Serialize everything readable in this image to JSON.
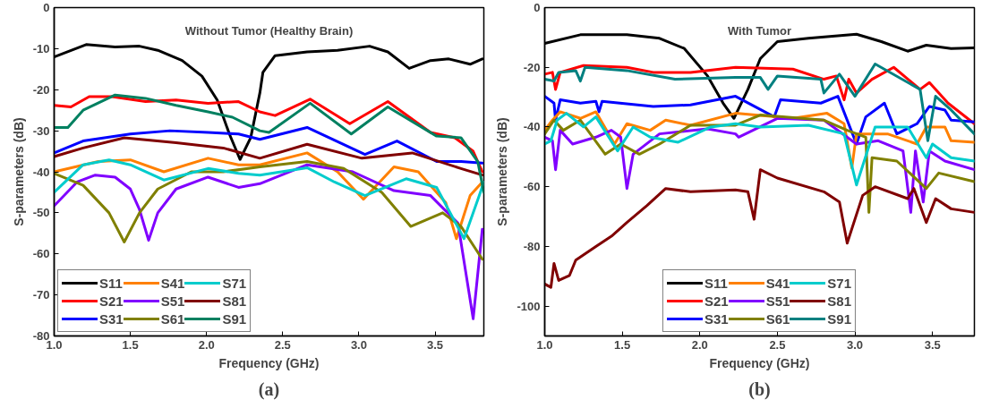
{
  "chart_data": [
    {
      "type": "line",
      "title": "Without Tumor (Healthy Brain)",
      "xlabel": "Frequency (GHz)",
      "ylabel": "S-parameters (dB)",
      "annotations": [
        "(a)"
      ],
      "grid": false,
      "legend": "bottom left",
      "line_style": "solid",
      "xlim": [
        1.0,
        3.82
      ],
      "xticks": [
        {
          "value": 1.0,
          "label": "1.0"
        },
        {
          "value": 1.5,
          "label": "1.5"
        },
        {
          "value": 2.0,
          "label": "2.0"
        },
        {
          "value": 2.5,
          "label": "2.5"
        },
        {
          "value": 3.0,
          "label": "3.0"
        },
        {
          "value": 3.5,
          "label": "3.5"
        }
      ],
      "ylim": [
        -80,
        0
      ],
      "yticks": [
        -80,
        -70,
        -60,
        -50,
        -40,
        -30,
        -20,
        -10,
        0
      ],
      "series": [
        {
          "name": "S11",
          "color": "#000000",
          "x": [
            1.0,
            1.21,
            1.4,
            1.56,
            1.68,
            1.84,
            1.97,
            2.07,
            2.15,
            2.22,
            2.29,
            2.35,
            2.37,
            2.45,
            2.66,
            2.86,
            3.07,
            3.19,
            3.33,
            3.47,
            3.59,
            3.73,
            3.81
          ],
          "values": [
            -12,
            -9,
            -9.6,
            -9.4,
            -10.4,
            -12.9,
            -16.7,
            -22.5,
            -30.8,
            -37,
            -31.7,
            -20.8,
            -15.8,
            -11.7,
            -10.8,
            -10.4,
            -9.4,
            -10.8,
            -14.8,
            -12.9,
            -12.5,
            -13.8,
            -12.5
          ]
        },
        {
          "name": "S21",
          "color": "#ff0000",
          "x": [
            1.0,
            1.11,
            1.23,
            1.38,
            1.6,
            1.8,
            2.01,
            2.21,
            2.35,
            2.45,
            2.68,
            2.94,
            3.19,
            3.47,
            3.63,
            3.75,
            3.81
          ],
          "values": [
            -23.8,
            -24.2,
            -21.7,
            -21.7,
            -22.9,
            -22.5,
            -23.3,
            -22.9,
            -25.4,
            -26.3,
            -22.3,
            -28.3,
            -22.9,
            -30.4,
            -31.7,
            -35,
            -40
          ]
        },
        {
          "name": "S31",
          "color": "#0000ff",
          "x": [
            1.0,
            1.19,
            1.5,
            1.76,
            2.01,
            2.21,
            2.35,
            2.66,
            3.04,
            3.25,
            3.51,
            3.67,
            3.81
          ],
          "values": [
            -35.4,
            -32.5,
            -30.8,
            -30,
            -30.4,
            -30.8,
            -32.1,
            -29.2,
            -35.8,
            -32.5,
            -37.5,
            -37.5,
            -37.9
          ]
        },
        {
          "name": "S41",
          "color": "#ff8000",
          "x": [
            1.0,
            1.29,
            1.5,
            1.72,
            2.01,
            2.21,
            2.35,
            2.66,
            2.86,
            3.03,
            3.23,
            3.39,
            3.57,
            3.64,
            3.73,
            3.81
          ],
          "values": [
            -40,
            -37.5,
            -37.1,
            -40,
            -36.7,
            -38.3,
            -38.3,
            -35.4,
            -40,
            -46.7,
            -38.8,
            -40,
            -47.5,
            -56.3,
            -45.8,
            -42.5
          ]
        },
        {
          "name": "S51",
          "color": "#8000ff",
          "x": [
            1.0,
            1.15,
            1.27,
            1.4,
            1.5,
            1.56,
            1.62,
            1.68,
            1.8,
            2.01,
            2.21,
            2.35,
            2.66,
            2.96,
            3.23,
            3.47,
            3.65,
            3.75,
            3.81
          ],
          "values": [
            -48.3,
            -42.5,
            -40.8,
            -41.3,
            -44.2,
            -49.2,
            -56.7,
            -50,
            -44.2,
            -41.3,
            -43.8,
            -42.9,
            -38.3,
            -40,
            -44.6,
            -45.8,
            -52.5,
            -75.8,
            -54
          ]
        },
        {
          "name": "S61",
          "color": "#808000",
          "x": [
            1.0,
            1.19,
            1.36,
            1.46,
            1.56,
            1.68,
            1.9,
            2.11,
            2.35,
            2.66,
            2.9,
            3.15,
            3.34,
            3.55,
            3.67,
            3.81
          ],
          "values": [
            -40.4,
            -43.3,
            -50,
            -57.1,
            -50,
            -44.2,
            -40,
            -40,
            -38.8,
            -37.5,
            -39.2,
            -45,
            -53.3,
            -50,
            -53.3,
            -61.3
          ]
        },
        {
          "name": "S71",
          "color": "#00cccc",
          "x": [
            1.0,
            1.19,
            1.36,
            1.5,
            1.72,
            2.01,
            2.21,
            2.35,
            2.66,
            2.84,
            3.04,
            3.31,
            3.51,
            3.69,
            3.79,
            3.82
          ],
          "values": [
            -45,
            -38.3,
            -37.1,
            -38.3,
            -42,
            -39.2,
            -40.4,
            -40.8,
            -39,
            -42.5,
            -45.8,
            -41.7,
            -43.8,
            -56.3,
            -45.8,
            -42.5
          ]
        },
        {
          "name": "S81",
          "color": "#800000",
          "x": [
            1.0,
            1.19,
            1.46,
            1.8,
            2.11,
            2.35,
            2.66,
            3.02,
            3.35,
            3.67,
            3.81
          ],
          "values": [
            -36.3,
            -34.2,
            -31.7,
            -32.9,
            -34.2,
            -36.7,
            -33.3,
            -36.7,
            -35.4,
            -39.2,
            -40.8
          ]
        },
        {
          "name": "S91",
          "color": "#008060",
          "x": [
            1.0,
            1.09,
            1.19,
            1.4,
            1.6,
            1.8,
            2.01,
            2.17,
            2.35,
            2.41,
            2.68,
            2.95,
            3.19,
            3.51,
            3.67,
            3.78,
            3.82
          ],
          "values": [
            -29.2,
            -29.2,
            -25,
            -21.3,
            -22.1,
            -23.8,
            -25.4,
            -26.7,
            -30,
            -30.4,
            -23.3,
            -30.8,
            -24.2,
            -31.3,
            -31.7,
            -37.5,
            -45
          ]
        }
      ]
    },
    {
      "type": "line",
      "title": "With Tumor",
      "xlabel": "Frequency (GHz)",
      "ylabel": "S-parameters (dB)",
      "annotations": [
        "(b)"
      ],
      "grid": false,
      "legend": "bottom",
      "line_style": "solid",
      "xlim": [
        1.0,
        3.77
      ],
      "xticks": [
        {
          "value": 1.0,
          "label": "1.0"
        },
        {
          "value": 1.5,
          "label": "1.5"
        },
        {
          "value": 2.0,
          "label": "2.0"
        },
        {
          "value": 2.5,
          "label": "2.5"
        },
        {
          "value": 3.0,
          "label": "3.0"
        },
        {
          "value": 3.5,
          "label": "3.5"
        }
      ],
      "ylim": [
        -110,
        0
      ],
      "yticks": [
        -100,
        -80,
        -60,
        -40,
        -20,
        0
      ],
      "series": [
        {
          "name": "S11",
          "color": "#000000",
          "x": [
            1.0,
            1.23,
            1.53,
            1.74,
            1.9,
            2.05,
            2.15,
            2.22,
            2.23,
            2.31,
            2.39,
            2.5,
            2.7,
            3.01,
            3.17,
            3.34,
            3.46,
            3.62,
            3.77
          ],
          "values": [
            -12,
            -9.1,
            -9.1,
            -10.3,
            -13.7,
            -22.9,
            -32,
            -37.1,
            -36,
            -27.4,
            -17.1,
            -11.4,
            -10.3,
            -8.9,
            -11.4,
            -14.6,
            -12.6,
            -13.7,
            -13.5
          ]
        },
        {
          "name": "S21",
          "color": "#ff0000",
          "x": [
            1.0,
            1.05,
            1.07,
            1.1,
            1.25,
            1.53,
            1.7,
            1.94,
            2.23,
            2.6,
            2.8,
            2.88,
            2.93,
            2.96,
            3.01,
            3.11,
            3.25,
            3.42,
            3.48,
            3.6,
            3.77
          ],
          "values": [
            -22.3,
            -21.7,
            -27.4,
            -21.7,
            -19.4,
            -20,
            -21.7,
            -21.7,
            -20,
            -20.6,
            -24,
            -22.9,
            -30.9,
            -24,
            -28.6,
            -24,
            -20,
            -27.4,
            -25.1,
            -32,
            -38.9
          ]
        },
        {
          "name": "S31",
          "color": "#0000ff",
          "x": [
            1.0,
            1.06,
            1.07,
            1.1,
            1.23,
            1.33,
            1.35,
            1.37,
            1.7,
            1.94,
            2.23,
            2.48,
            2.52,
            2.78,
            2.89,
            3.01,
            3.07,
            3.19,
            3.27,
            3.4,
            3.48,
            3.58,
            3.62,
            3.77
          ],
          "values": [
            -29.7,
            -32,
            -37.7,
            -30.9,
            -32,
            -31.4,
            -34.9,
            -31.4,
            -33.1,
            -32.6,
            -29.7,
            -36.6,
            -30.9,
            -32,
            -29.7,
            -45.7,
            -36.6,
            -32,
            -42.3,
            -38.9,
            -33.1,
            -34.3,
            -37.7,
            -38.3
          ]
        },
        {
          "name": "S41",
          "color": "#ff8000",
          "x": [
            1.0,
            1.05,
            1.1,
            1.23,
            1.33,
            1.45,
            1.53,
            1.68,
            1.78,
            1.94,
            2.23,
            2.6,
            2.82,
            2.93,
            2.98,
            3.01,
            3.21,
            3.4,
            3.46,
            3.58,
            3.62,
            3.77
          ],
          "values": [
            -41.1,
            -37.7,
            -34.9,
            -37.1,
            -34.9,
            -45.7,
            -38.9,
            -41.1,
            -37.7,
            -39.4,
            -35.4,
            -37.1,
            -35.4,
            -38.9,
            -53.7,
            -42.3,
            -42.3,
            -45.7,
            -40,
            -40,
            -44.6,
            -45.1
          ]
        },
        {
          "name": "S51",
          "color": "#8000ff",
          "x": [
            1.0,
            1.05,
            1.07,
            1.1,
            1.18,
            1.33,
            1.43,
            1.49,
            1.53,
            1.57,
            1.74,
            2.05,
            2.23,
            2.25,
            2.5,
            2.8,
            3.01,
            3.15,
            3.31,
            3.36,
            3.39,
            3.44,
            3.48,
            3.58,
            3.77
          ],
          "values": [
            -43.4,
            -44.6,
            -54.3,
            -41.1,
            -45.7,
            -43.4,
            -41.1,
            -43.4,
            -60.6,
            -49.1,
            -42.3,
            -40.6,
            -42.3,
            -43.4,
            -37.1,
            -37.7,
            -45.7,
            -44.6,
            -48,
            -68.6,
            -48,
            -65.1,
            -48,
            -51.4,
            -54.3
          ]
        },
        {
          "name": "S61",
          "color": "#808000",
          "x": [
            1.0,
            1.06,
            1.12,
            1.23,
            1.39,
            1.49,
            1.61,
            1.74,
            1.94,
            2.23,
            2.39,
            2.8,
            2.95,
            3.07,
            3.09,
            3.11,
            3.27,
            3.46,
            3.54,
            3.77
          ],
          "values": [
            -42.3,
            -37.7,
            -41.1,
            -37.7,
            -49.1,
            -45.7,
            -49.1,
            -45.7,
            -39.4,
            -39.4,
            -36,
            -37.7,
            -41.1,
            -43.4,
            -68.6,
            -50.3,
            -51.4,
            -60.6,
            -55.4,
            -58.3
          ]
        },
        {
          "name": "S71",
          "color": "#00cccc",
          "x": [
            1.0,
            1.04,
            1.08,
            1.14,
            1.25,
            1.33,
            1.47,
            1.57,
            1.68,
            1.86,
            2.07,
            2.23,
            2.39,
            2.7,
            2.93,
            3.01,
            3.13,
            3.34,
            3.46,
            3.5,
            3.62,
            3.77
          ],
          "values": [
            -45.7,
            -44.6,
            -37.7,
            -35.4,
            -40,
            -36.6,
            -48,
            -40,
            -43.4,
            -45.1,
            -40,
            -38.9,
            -40,
            -39.4,
            -42.3,
            -59.4,
            -40,
            -40,
            -50.3,
            -45.7,
            -50.3,
            -51.4
          ]
        },
        {
          "name": "S81",
          "color": "#800000",
          "x": [
            1.0,
            1.04,
            1.06,
            1.09,
            1.16,
            1.2,
            1.33,
            1.43,
            1.53,
            1.66,
            1.78,
            1.94,
            2.23,
            2.31,
            2.35,
            2.39,
            2.5,
            2.8,
            2.9,
            2.95,
            3.05,
            3.13,
            3.34,
            3.38,
            3.46,
            3.52,
            3.62,
            3.77
          ],
          "values": [
            -92.6,
            -93.7,
            -85.7,
            -91.4,
            -89.7,
            -84.6,
            -80,
            -76.6,
            -72,
            -66.3,
            -60.6,
            -61.7,
            -61.1,
            -61.7,
            -70.9,
            -54.3,
            -57.1,
            -61.7,
            -65.1,
            -78.9,
            -62.9,
            -60,
            -64,
            -60.6,
            -72,
            -64,
            -67.4,
            -68.6
          ]
        },
        {
          "name": "S91",
          "color": "#008080",
          "x": [
            1.0,
            1.06,
            1.09,
            1.2,
            1.23,
            1.26,
            1.53,
            1.84,
            2.23,
            2.39,
            2.44,
            2.5,
            2.78,
            2.8,
            2.9,
            3.0,
            3.13,
            3.42,
            3.47,
            3.52,
            3.62,
            3.77
          ],
          "values": [
            -24,
            -24.6,
            -21.7,
            -21.1,
            -24.6,
            -20,
            -21.1,
            -24,
            -23.4,
            -23.4,
            -27.4,
            -22.9,
            -24,
            -28.6,
            -22.3,
            -29.7,
            -18.9,
            -27.4,
            -44.6,
            -29.7,
            -34.3,
            -42.3
          ]
        }
      ]
    }
  ]
}
